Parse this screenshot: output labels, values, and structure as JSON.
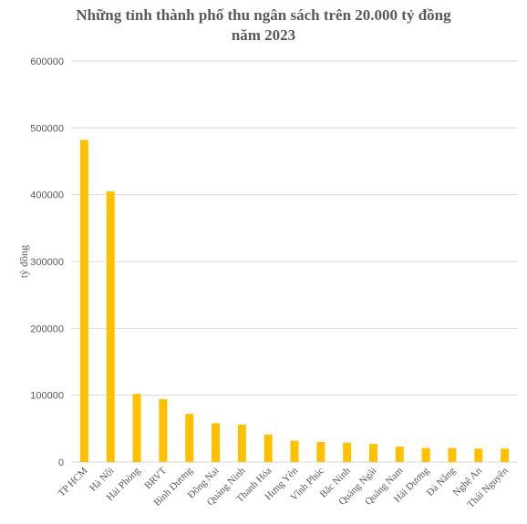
{
  "chart_data": {
    "type": "bar",
    "title_lines": [
      "Những tỉnh thành phố thu ngân sách trên 20.000 tỷ đồng",
      "năm 2023"
    ],
    "ylabel": "tỷ đồng",
    "xlabel": "",
    "ylim": [
      0,
      600000
    ],
    "yticks": [
      "0",
      "100000",
      "200000",
      "300000",
      "400000",
      "500000",
      "600000"
    ],
    "grid": true,
    "bar_color": "#FFC000",
    "grid_color": "#D9D9D9",
    "categories": [
      "TP HCM",
      "Hà Nội",
      "Hải Phòng",
      "BRVT",
      "Bình Dương",
      "Đồng Nai",
      "Quảng Ninh",
      "Thanh Hóa",
      "Hưng Yên",
      "Vĩnh Phúc",
      "Bắc Ninh",
      "Quảng Ngãi",
      "Quảng Nam",
      "Hải Dương",
      "Đà Nẵng",
      "Nghệ An",
      "Thái Nguyên"
    ],
    "values": [
      482000,
      405000,
      102000,
      94000,
      72000,
      58000,
      56000,
      41000,
      32000,
      30000,
      29000,
      27000,
      23000,
      21000,
      21000,
      20000,
      20000
    ]
  }
}
